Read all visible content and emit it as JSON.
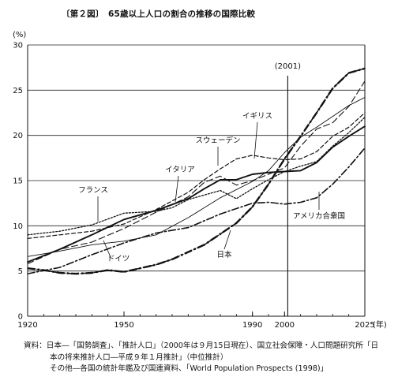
{
  "chart_data": {
    "type": "line",
    "title": "〔第２図〕　65歳以上人口の割合の推移の国際比較",
    "y_unit_label": "(%)",
    "x_unit_label": "(年)",
    "xlim": [
      1920,
      2025
    ],
    "ylim": [
      0,
      30
    ],
    "x_ticks": [
      1920,
      1950,
      1990,
      2000,
      2025
    ],
    "y_ticks": [
      0,
      5,
      10,
      15,
      20,
      25,
      30
    ],
    "grid": "horizontal",
    "reference_line": {
      "x": 2001,
      "label": "(2001)"
    },
    "series": [
      {
        "name": "日本",
        "style": "dash-dot",
        "points": [
          [
            1920,
            5.3
          ],
          [
            1925,
            5.1
          ],
          [
            1930,
            4.8
          ],
          [
            1935,
            4.7
          ],
          [
            1940,
            4.8
          ],
          [
            1945,
            5.1
          ],
          [
            1950,
            4.9
          ],
          [
            1955,
            5.3
          ],
          [
            1960,
            5.7
          ],
          [
            1965,
            6.3
          ],
          [
            1970,
            7.1
          ],
          [
            1975,
            7.9
          ],
          [
            1980,
            9.1
          ],
          [
            1985,
            10.3
          ],
          [
            1990,
            12.1
          ],
          [
            1995,
            14.6
          ],
          [
            2000,
            17.4
          ],
          [
            2005,
            19.9
          ],
          [
            2010,
            22.5
          ],
          [
            2015,
            25.2
          ],
          [
            2020,
            26.9
          ],
          [
            2025,
            27.4
          ]
        ]
      },
      {
        "name": "アメリカ合衆国",
        "style": "dash-dot",
        "points": [
          [
            1920,
            4.7
          ],
          [
            1930,
            5.4
          ],
          [
            1940,
            6.8
          ],
          [
            1950,
            8.1
          ],
          [
            1960,
            9.2
          ],
          [
            1970,
            9.8
          ],
          [
            1980,
            11.3
          ],
          [
            1985,
            11.9
          ],
          [
            1990,
            12.5
          ],
          [
            1995,
            12.6
          ],
          [
            2000,
            12.4
          ],
          [
            2005,
            12.6
          ],
          [
            2010,
            13.1
          ],
          [
            2015,
            14.6
          ],
          [
            2020,
            16.5
          ],
          [
            2025,
            18.6
          ]
        ]
      },
      {
        "name": "フランス",
        "style": "dotted",
        "points": [
          [
            1920,
            9.0
          ],
          [
            1930,
            9.4
          ],
          [
            1940,
            10.1
          ],
          [
            1950,
            11.4
          ],
          [
            1960,
            11.6
          ],
          [
            1965,
            12.0
          ],
          [
            1970,
            12.9
          ],
          [
            1975,
            13.4
          ],
          [
            1980,
            13.9
          ],
          [
            1985,
            13.0
          ],
          [
            1990,
            14.1
          ],
          [
            1995,
            15.1
          ],
          [
            2000,
            16.0
          ],
          [
            2005,
            16.6
          ],
          [
            2010,
            17.1
          ],
          [
            2015,
            18.8
          ],
          [
            2020,
            20.3
          ],
          [
            2025,
            22.0
          ]
        ]
      },
      {
        "name": "ドイツ",
        "style": "long-dash",
        "points": [
          [
            1920,
            5.8
          ],
          [
            1930,
            7.4
          ],
          [
            1940,
            8.2
          ],
          [
            1950,
            9.7
          ],
          [
            1960,
            11.5
          ],
          [
            1970,
            13.2
          ],
          [
            1975,
            14.8
          ],
          [
            1980,
            15.5
          ],
          [
            1985,
            14.5
          ],
          [
            1990,
            15.0
          ],
          [
            1995,
            15.7
          ],
          [
            2000,
            16.4
          ],
          [
            2005,
            18.8
          ],
          [
            2010,
            20.7
          ],
          [
            2015,
            21.4
          ],
          [
            2020,
            23.2
          ],
          [
            2025,
            26.0
          ]
        ]
      },
      {
        "name": "イタリア",
        "style": "solid-thin",
        "points": [
          [
            1920,
            6.6
          ],
          [
            1930,
            7.2
          ],
          [
            1940,
            7.9
          ],
          [
            1950,
            8.3
          ],
          [
            1960,
            9.0
          ],
          [
            1970,
            10.9
          ],
          [
            1980,
            13.1
          ],
          [
            1990,
            14.9
          ],
          [
            1995,
            16.1
          ],
          [
            2000,
            18.1
          ],
          [
            2005,
            19.8
          ],
          [
            2010,
            20.9
          ],
          [
            2015,
            22.1
          ],
          [
            2020,
            23.3
          ],
          [
            2025,
            24.2
          ]
        ]
      },
      {
        "name": "スウェーデン",
        "style": "dashed",
        "points": [
          [
            1920,
            8.6
          ],
          [
            1930,
            9.0
          ],
          [
            1940,
            9.4
          ],
          [
            1950,
            10.2
          ],
          [
            1960,
            11.8
          ],
          [
            1970,
            13.7
          ],
          [
            1975,
            15.1
          ],
          [
            1980,
            16.3
          ],
          [
            1985,
            17.4
          ],
          [
            1990,
            17.8
          ],
          [
            1995,
            17.5
          ],
          [
            2000,
            17.3
          ],
          [
            2005,
            17.4
          ],
          [
            2010,
            18.2
          ],
          [
            2015,
            19.9
          ],
          [
            2020,
            20.9
          ],
          [
            2025,
            22.5
          ]
        ]
      },
      {
        "name": "イギリス",
        "style": "solid-thick",
        "points": [
          [
            1920,
            6.0
          ],
          [
            1930,
            7.4
          ],
          [
            1940,
            9.0
          ],
          [
            1950,
            10.7
          ],
          [
            1960,
            11.7
          ],
          [
            1970,
            13.0
          ],
          [
            1975,
            14.1
          ],
          [
            1980,
            15.1
          ],
          [
            1985,
            15.1
          ],
          [
            1990,
            15.7
          ],
          [
            1995,
            15.9
          ],
          [
            2000,
            16.0
          ],
          [
            2005,
            16.1
          ],
          [
            2010,
            17.0
          ],
          [
            2015,
            18.7
          ],
          [
            2020,
            19.9
          ],
          [
            2025,
            21.0
          ]
        ]
      }
    ],
    "source_lines": [
      "資料：日本―「国勢調査」、「推計人口」（2000年は９月15日現在）、国立社会保障・人口問題研究所「日",
      "本の将来推計人口―平成９年１月推計」（中位推計）",
      "その他―各国の統計年鑑及び国連資料、「World Population Prospects (1998)」"
    ]
  }
}
